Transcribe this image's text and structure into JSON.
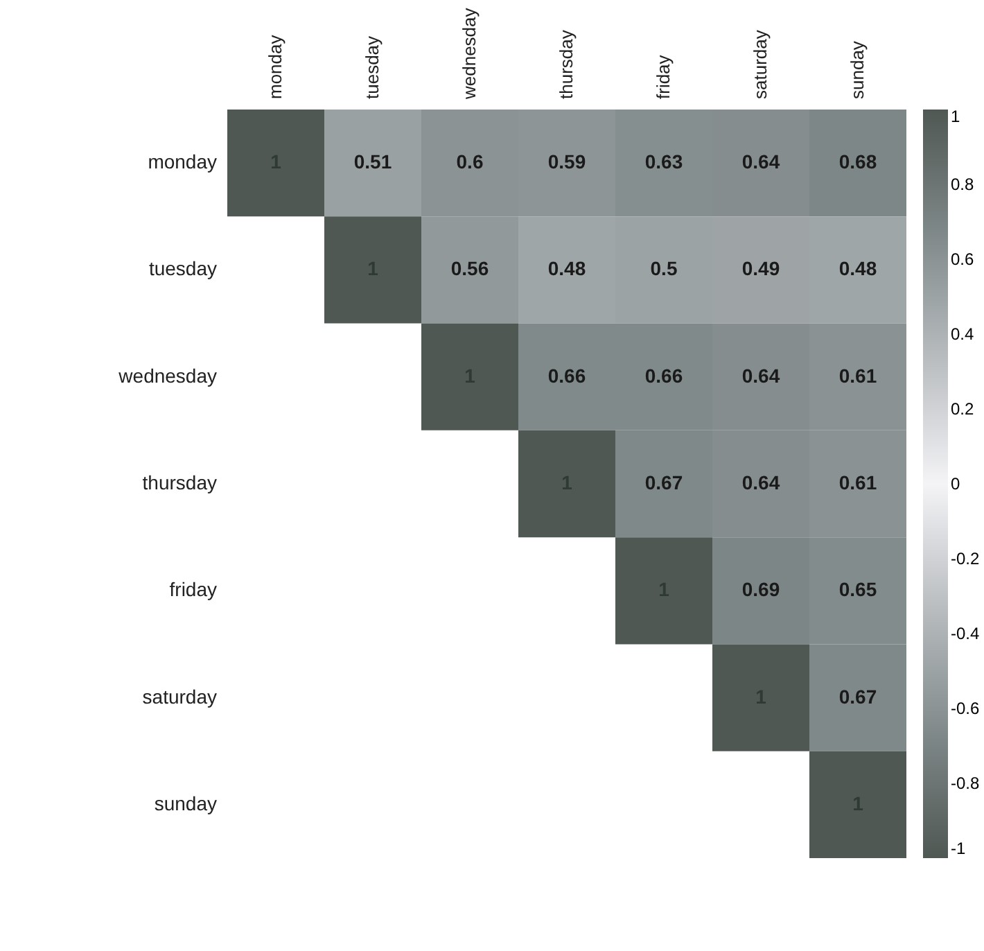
{
  "chart_data": {
    "type": "heatmap",
    "categories": [
      "monday",
      "tuesday",
      "wednesday",
      "thursday",
      "friday",
      "saturday",
      "sunday"
    ],
    "y_categories": [
      "monday",
      "tuesday",
      "wednesday",
      "thursday",
      "friday",
      "saturday",
      "sunday"
    ],
    "cells": [
      [
        1,
        0.51,
        0.6,
        0.59,
        0.63,
        0.64,
        0.68
      ],
      [
        null,
        1,
        0.56,
        0.48,
        0.5,
        0.49,
        0.48
      ],
      [
        null,
        null,
        1,
        0.66,
        0.66,
        0.64,
        0.61
      ],
      [
        null,
        null,
        null,
        1,
        0.67,
        0.64,
        0.61
      ],
      [
        null,
        null,
        null,
        null,
        1,
        0.69,
        0.65
      ],
      [
        null,
        null,
        null,
        null,
        null,
        1,
        0.67
      ],
      [
        null,
        null,
        null,
        null,
        null,
        null,
        1
      ]
    ],
    "clim": [
      -1,
      1
    ],
    "cticks": [
      1,
      0.8,
      0.6,
      0.4,
      0.2,
      0,
      -0.2,
      -0.4,
      -0.6,
      -0.8,
      -1
    ],
    "data_labels": true,
    "grid": false
  }
}
